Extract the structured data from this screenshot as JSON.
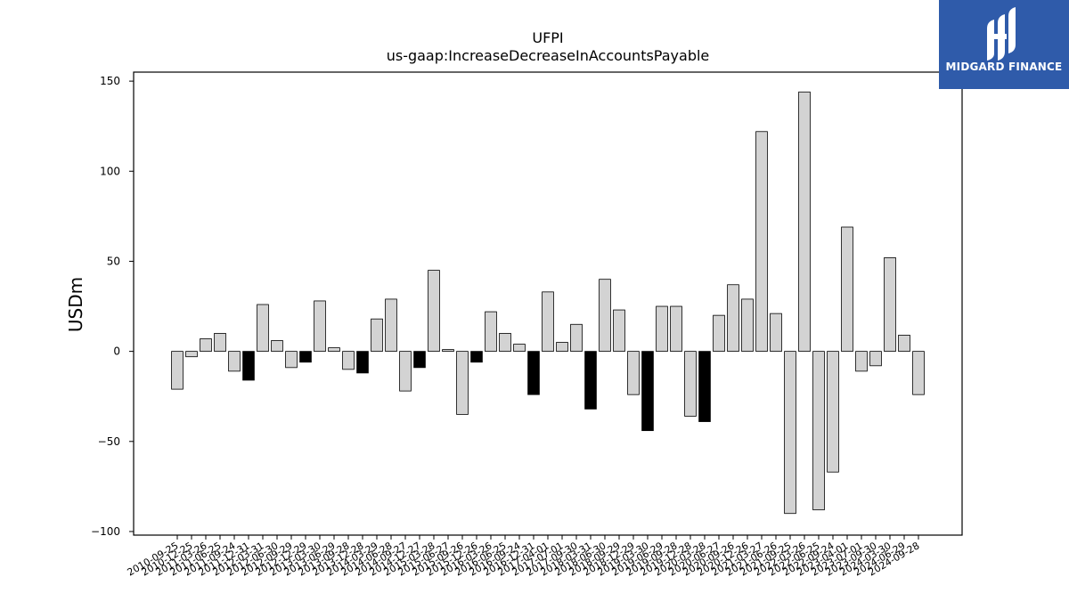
{
  "branding": {
    "name": "MIDGARD FINANCE",
    "background_color": "#2f5baa",
    "icon": "midgard-logo-icon"
  },
  "chart_data": {
    "type": "bar",
    "title": "UFPI",
    "subtitle": "us-gaap:IncreaseDecreaseInAccountsPayable",
    "xlabel": "",
    "ylabel": "USDm",
    "ylim": [
      -102,
      155
    ],
    "yticks": [
      -100,
      -50,
      0,
      50,
      100,
      150
    ],
    "grid": false,
    "colors": {
      "standard": "#d3d3d3",
      "highlight": "#000000",
      "edge": "#000000"
    },
    "categories": [
      "2010-09-25",
      "2010-12-25",
      "2011-03-26",
      "2011-06-25",
      "2011-09-24",
      "2011-12-31",
      "2012-03-31",
      "2012-06-30",
      "2012-09-29",
      "2012-12-29",
      "2013-03-30",
      "2013-06-29",
      "2013-09-28",
      "2013-12-28",
      "2014-03-29",
      "2014-06-28",
      "2014-09-27",
      "2014-12-27",
      "2015-03-28",
      "2015-06-27",
      "2015-09-26",
      "2015-12-26",
      "2016-03-26",
      "2016-06-25",
      "2016-09-24",
      "2016-12-31",
      "2017-04-01",
      "2017-07-01",
      "2017-09-30",
      "2018-03-31",
      "2018-06-30",
      "2018-09-29",
      "2018-12-29",
      "2019-03-30",
      "2019-06-29",
      "2019-09-28",
      "2019-12-28",
      "2020-03-28",
      "2020-06-27",
      "2020-09-26",
      "2020-12-26",
      "2021-03-27",
      "2021-06-26",
      "2021-09-25",
      "2022-03-26",
      "2022-06-25",
      "2022-09-24",
      "2023-04-01",
      "2023-07-01",
      "2023-09-30",
      "2024-03-30",
      "2024-06-29",
      "2024-09-28"
    ],
    "values": [
      -21,
      -3,
      7,
      10,
      -11,
      -16,
      26,
      6,
      -9,
      -6,
      28,
      2,
      -10,
      -12,
      18,
      29,
      -22,
      -9,
      45,
      1,
      -35,
      -6,
      22,
      10,
      4,
      -24,
      33,
      5,
      15,
      -32,
      40,
      23,
      -24,
      -44,
      25,
      25,
      -36,
      -39,
      20,
      37,
      29,
      122,
      21,
      -90,
      144,
      -88,
      -67,
      69,
      -11,
      -8,
      52,
      9,
      -24
    ],
    "highlighted": [
      false,
      false,
      false,
      false,
      false,
      true,
      false,
      false,
      false,
      true,
      false,
      false,
      false,
      true,
      false,
      false,
      false,
      true,
      false,
      false,
      false,
      true,
      false,
      false,
      false,
      true,
      false,
      false,
      false,
      true,
      false,
      false,
      false,
      true,
      false,
      false,
      false,
      true,
      false,
      false,
      false,
      false,
      false,
      false,
      false,
      false,
      false,
      false,
      false,
      false,
      false,
      false,
      false
    ]
  }
}
